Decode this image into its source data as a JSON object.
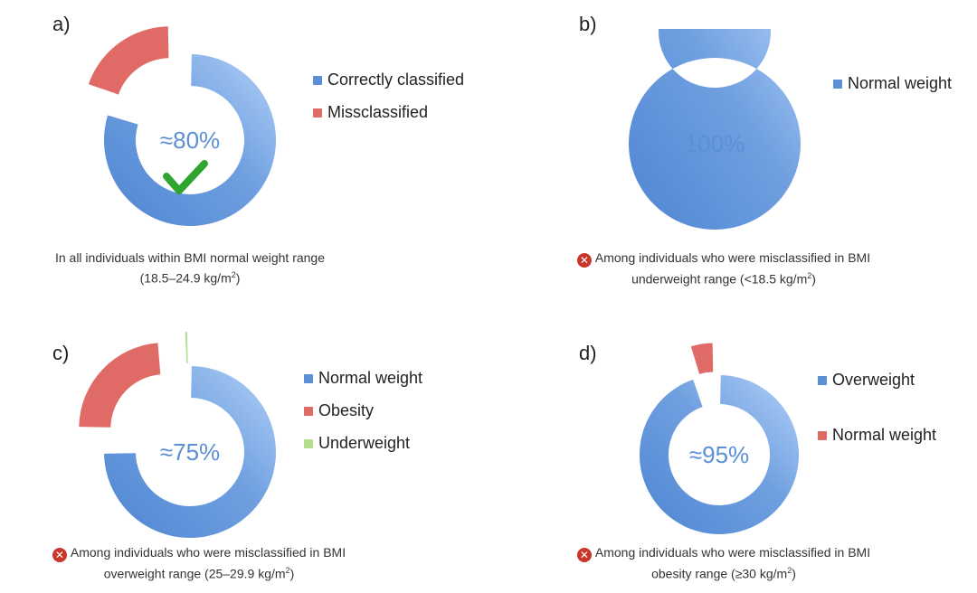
{
  "colors": {
    "blue": "#5b8fd6",
    "blue_light": "#a9cbf6",
    "red": "#e06a66",
    "green": "#b5de8c",
    "check": "#2fa52f"
  },
  "chart_data": [
    {
      "type": "pie",
      "panel_label": "a)",
      "center_text": "≈80%",
      "slices": [
        {
          "name": "Correctly classified",
          "value": 80,
          "color": "blue",
          "exploded": false
        },
        {
          "name": "Missclassified",
          "value": 20,
          "color": "red",
          "exploded": true
        }
      ],
      "caption_line1": "In all individuals within BMI normal weight range",
      "caption_line2_pre": "(18.5–24.9 kg/m",
      "caption_sup": "2",
      "caption_line2_post": ")",
      "has_cross": false,
      "icon": "check-icon"
    },
    {
      "type": "pie",
      "panel_label": "b)",
      "center_text": "100%",
      "slices": [
        {
          "name": "Normal weight",
          "value": 100,
          "color": "blue",
          "exploded": false
        }
      ],
      "caption_line1": "Among individuals who were misclassified in BMI",
      "caption_line2_pre": "underweight range (<18.5 kg/m",
      "caption_sup": "2",
      "caption_line2_post": ")",
      "has_cross": true,
      "icon": "cross-icon"
    },
    {
      "type": "pie",
      "panel_label": "c)",
      "center_text": "≈75%",
      "slices": [
        {
          "name": "Normal weight",
          "value": 75,
          "color": "blue",
          "exploded": false
        },
        {
          "name": "Obesity",
          "value": 24,
          "color": "red",
          "exploded": true
        },
        {
          "name": "Underweight",
          "value": 1,
          "color": "green",
          "exploded": true
        }
      ],
      "caption_line1": "Among individuals who were misclassified in BMI",
      "caption_line2_pre": "overweight range (25–29.9 kg/m",
      "caption_sup": "2",
      "caption_line2_post": ")",
      "has_cross": true,
      "icon": "cross-icon"
    },
    {
      "type": "pie",
      "panel_label": "d)",
      "center_text": "≈95%",
      "slices": [
        {
          "name": "Overweight",
          "value": 95,
          "color": "blue",
          "exploded": false
        },
        {
          "name": "Normal weight",
          "value": 5,
          "color": "red",
          "exploded": true
        }
      ],
      "caption_line1": "Among individuals who were misclassified in BMI",
      "caption_line2_pre": "obesity range (≥30 kg/m",
      "caption_sup": "2",
      "caption_line2_post": ")",
      "has_cross": true,
      "icon": "cross-icon"
    }
  ]
}
